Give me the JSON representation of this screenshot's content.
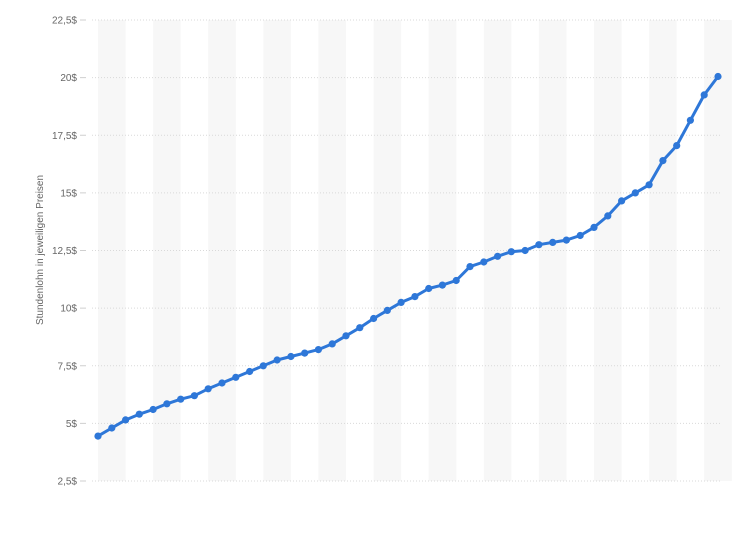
{
  "chart_data": {
    "type": "line",
    "title": "",
    "xlabel": "",
    "ylabel": "Stundenlohn in jeweiligen Preisen",
    "ylim": [
      2.5,
      22.5
    ],
    "y_ticks": [
      {
        "value": 2.5,
        "label": "2,5$"
      },
      {
        "value": 5,
        "label": "5$"
      },
      {
        "value": 7.5,
        "label": "7,5$"
      },
      {
        "value": 10,
        "label": "10$"
      },
      {
        "value": 12.5,
        "label": "12,5$"
      },
      {
        "value": 15,
        "label": "15$"
      },
      {
        "value": 17.5,
        "label": "17,5$"
      },
      {
        "value": 20,
        "label": "20$"
      },
      {
        "value": 22.5,
        "label": "22,5$"
      }
    ],
    "grid": true,
    "series": [
      {
        "color": "#2e77d8",
        "values": [
          4.45,
          4.8,
          5.15,
          5.4,
          5.6,
          5.85,
          6.05,
          6.2,
          6.5,
          6.75,
          7.0,
          7.25,
          7.5,
          7.75,
          7.9,
          8.05,
          8.2,
          8.45,
          8.8,
          9.15,
          9.55,
          9.9,
          10.25,
          10.5,
          10.85,
          11.0,
          11.2,
          11.8,
          12.0,
          12.25,
          12.45,
          12.5,
          12.75,
          12.85,
          12.95,
          13.15,
          13.5,
          14.0,
          14.65,
          15.0,
          15.35,
          16.4,
          17.05,
          18.15,
          19.25,
          20.05
        ]
      }
    ]
  }
}
